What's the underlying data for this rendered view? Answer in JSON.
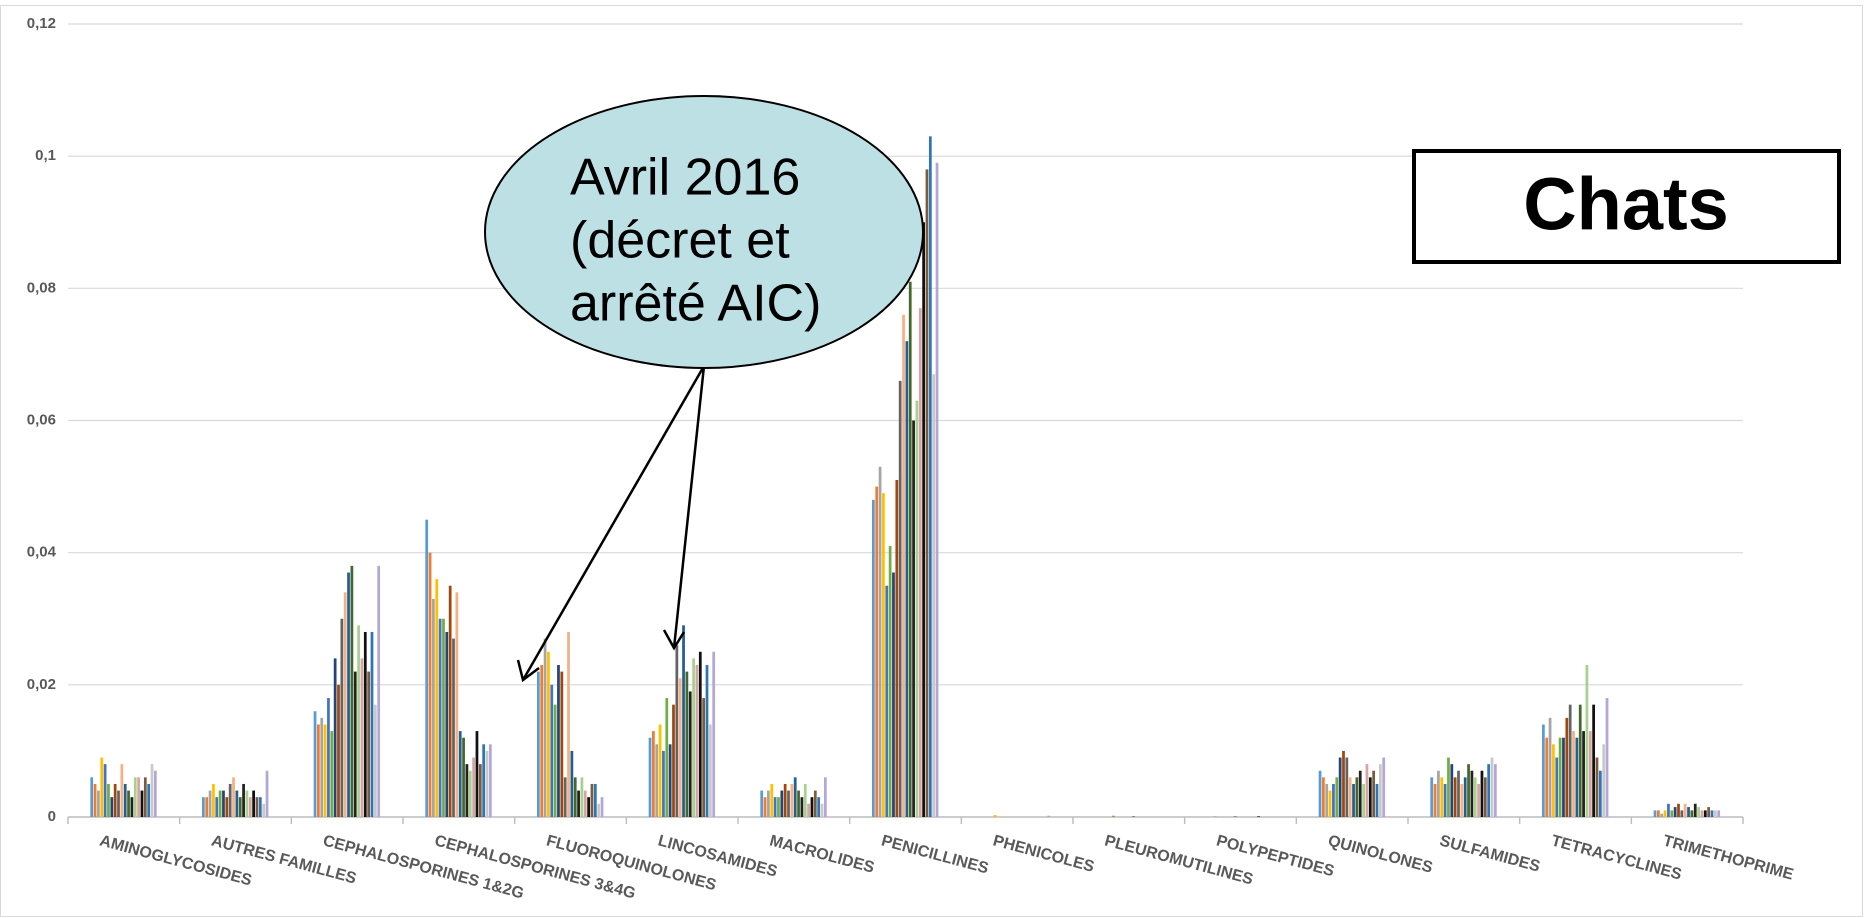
{
  "chart_data": {
    "type": "bar",
    "title": "Chats",
    "annotation": {
      "lines": [
        "Avril 2016",
        "(décret et",
        "arrêté AIC)"
      ]
    },
    "categories": [
      "AMINOGLYCOSIDES",
      "AUTRES FAMILLES",
      "CEPHALOSPORINES 1&2G",
      "CEPHALOSPORINES 3&4G",
      "FLUOROQUINOLONES",
      "LINCOSAMIDES",
      "MACROLIDES",
      "PENICILLINES",
      "PHENICOLES",
      "PLEUROMUTILINES",
      "POLYPEPTIDES",
      "QUINOLONES",
      "SULFAMIDES",
      "TETRACYCLINES",
      "TRIMETHOPRIME"
    ],
    "ylim": [
      0,
      0.12
    ],
    "yticks": [
      0,
      {
        "value": 0.02,
        "label": "0,02"
      },
      {
        "value": 0.04,
        "label": "0,04"
      },
      {
        "value": 0.06,
        "label": "0,06"
      },
      {
        "value": 0.08,
        "label": "0,08"
      },
      {
        "value": 0.1,
        "label": "0,1"
      },
      {
        "value": 0.12,
        "label": "0,12"
      }
    ],
    "grid": true,
    "series": [
      {
        "color": "#5b9bd5",
        "values": [
          0.006,
          0.003,
          0.016,
          0.045,
          0.022,
          0.012,
          0.004,
          0.048,
          0,
          0,
          0,
          0.007,
          0.006,
          0.014,
          0.001
        ]
      },
      {
        "color": "#ed7d31",
        "values": [
          0.005,
          0.003,
          0.014,
          0.04,
          0.023,
          0.013,
          0.003,
          0.05,
          0,
          0,
          0,
          0.006,
          0.005,
          0.012,
          0.001
        ]
      },
      {
        "color": "#a5a5a5",
        "values": [
          0.004,
          0.004,
          0.015,
          0.033,
          0.027,
          0.011,
          0.004,
          0.053,
          0,
          0,
          0.0001,
          0.005,
          0.007,
          0.015,
          0.0005
        ]
      },
      {
        "color": "#ffc000",
        "values": [
          0.009,
          0.005,
          0.014,
          0.036,
          0.025,
          0.014,
          0.005,
          0.049,
          0.0003,
          0,
          0,
          0.004,
          0.006,
          0.011,
          0.001
        ]
      },
      {
        "color": "#4472c4",
        "values": [
          0.008,
          0.003,
          0.018,
          0.03,
          0.02,
          0.01,
          0.003,
          0.035,
          0,
          0,
          0,
          0.005,
          0.005,
          0.009,
          0.002
        ]
      },
      {
        "color": "#70ad47",
        "values": [
          0.005,
          0.004,
          0.013,
          0.03,
          0.017,
          0.018,
          0.003,
          0.041,
          0,
          0.0002,
          0,
          0.006,
          0.009,
          0.012,
          0.001
        ]
      },
      {
        "color": "#264478",
        "values": [
          0.003,
          0.004,
          0.024,
          0.028,
          0.023,
          0.011,
          0.004,
          0.037,
          0,
          0,
          0,
          0.009,
          0.008,
          0.012,
          0.0015
        ]
      },
      {
        "color": "#9e480e",
        "values": [
          0.005,
          0.003,
          0.02,
          0.035,
          0.022,
          0.017,
          0.005,
          0.051,
          0,
          0,
          0,
          0.01,
          0.006,
          0.015,
          0.002
        ]
      },
      {
        "color": "#636363",
        "values": [
          0.004,
          0.005,
          0.03,
          0.027,
          0.006,
          0.026,
          0.004,
          0.066,
          0,
          0,
          0.0001,
          0.009,
          0.007,
          0.017,
          0.001
        ]
      },
      {
        "color": "#f4b183",
        "values": [
          0.008,
          0.006,
          0.034,
          0.034,
          0.028,
          0.021,
          0.005,
          0.076,
          0,
          0,
          0,
          0.006,
          0.005,
          0.013,
          0.002
        ]
      },
      {
        "color": "#255e91",
        "values": [
          0.005,
          0.004,
          0.037,
          0.013,
          0.01,
          0.029,
          0.006,
          0.072,
          0,
          0,
          0,
          0.005,
          0.006,
          0.012,
          0.0015
        ]
      },
      {
        "color": "#43682b",
        "values": [
          0.004,
          0.003,
          0.038,
          0.012,
          0.006,
          0.022,
          0.004,
          0.081,
          0,
          0.0001,
          0,
          0.006,
          0.008,
          0.017,
          0.001
        ]
      },
      {
        "color": "#222222",
        "values": [
          0.003,
          0.005,
          0.022,
          0.008,
          0.004,
          0.019,
          0.003,
          0.06,
          0,
          0,
          0,
          0.007,
          0.007,
          0.013,
          0.002
        ]
      },
      {
        "color": "#a9d18e",
        "values": [
          0.006,
          0.004,
          0.029,
          0.007,
          0.006,
          0.024,
          0.005,
          0.063,
          0,
          0,
          0,
          0.005,
          0.006,
          0.023,
          0.0015
        ]
      },
      {
        "color": "#d6a5a5",
        "values": [
          0.006,
          0.003,
          0.024,
          0.009,
          0.004,
          0.023,
          0.002,
          0.077,
          0,
          0,
          0,
          0.008,
          0.005,
          0.013,
          0.001
        ]
      },
      {
        "color": "#111111",
        "values": [
          0.004,
          0.004,
          0.028,
          0.013,
          0.003,
          0.025,
          0.003,
          0.09,
          0,
          0,
          0.0001,
          0.006,
          0.007,
          0.017,
          0.001
        ]
      },
      {
        "color": "#7a5c3c",
        "values": [
          0.006,
          0.003,
          0.022,
          0.008,
          0.005,
          0.018,
          0.004,
          0.098,
          0,
          0,
          0,
          0.007,
          0.006,
          0.009,
          0.0015
        ]
      },
      {
        "color": "#2e75b6",
        "values": [
          0.005,
          0.003,
          0.028,
          0.011,
          0.005,
          0.023,
          0.003,
          0.103,
          0,
          0,
          0,
          0.005,
          0.008,
          0.007,
          0.001
        ]
      },
      {
        "color": "#c9c9c9",
        "values": [
          0.008,
          0.002,
          0.017,
          0.01,
          0.002,
          0.014,
          0.002,
          0.067,
          0,
          0,
          0,
          0.008,
          0.009,
          0.011,
          0.001
        ]
      },
      {
        "color": "#b4a7d6",
        "values": [
          0.007,
          0.007,
          0.038,
          0.011,
          0.003,
          0.025,
          0.006,
          0.099,
          0.0002,
          0,
          0,
          0.009,
          0.008,
          0.018,
          0.001
        ]
      }
    ]
  }
}
